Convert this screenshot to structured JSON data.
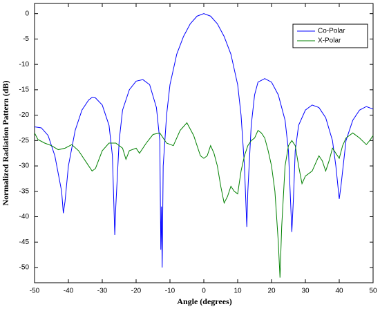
{
  "chart_data": {
    "type": "line",
    "x_label": "Angle (degrees)",
    "y_label": "Normalized Radiation Pattern (dB)",
    "xlim": [
      -50,
      50
    ],
    "ylim": [
      -53,
      2
    ],
    "xticks": [
      -50,
      -40,
      -30,
      -20,
      -10,
      0,
      10,
      20,
      30,
      40,
      50
    ],
    "yticks": [
      0,
      -5,
      -10,
      -15,
      -20,
      -25,
      -30,
      -35,
      -40,
      -45,
      -50
    ],
    "legend": "upper right",
    "series": [
      {
        "name": "Co-Polar",
        "color": "#0000ff",
        "x": [
          -50,
          -48,
          -46,
          -44,
          -42,
          -41.5,
          -41,
          -40,
          -38,
          -36,
          -34,
          -33,
          -32,
          -30,
          -28,
          -27,
          -26.3,
          -26,
          -25,
          -24,
          -22,
          -20,
          -18,
          -16,
          -14,
          -13,
          -12.7,
          -12.5,
          -12.3,
          -12,
          -11,
          -10,
          -8,
          -6,
          -4,
          -2,
          0,
          2,
          4,
          6,
          8,
          10,
          11,
          12,
          12.7,
          13,
          14,
          15,
          16,
          18,
          20,
          22,
          24,
          25,
          26,
          26.5,
          27,
          28,
          30,
          32,
          34,
          36,
          38,
          39,
          40,
          40.5,
          42,
          44,
          46,
          48,
          50
        ],
        "values": [
          -22.3,
          -22.5,
          -24,
          -28,
          -35,
          -39.3,
          -37,
          -30,
          -23,
          -19,
          -17,
          -16.5,
          -16.6,
          -18,
          -22,
          -28,
          -43.6,
          -38,
          -25,
          -19,
          -15,
          -13.3,
          -13,
          -14,
          -18.5,
          -25,
          -46.5,
          -38,
          -50,
          -30,
          -20,
          -14,
          -8,
          -4.5,
          -2,
          -0.5,
          0,
          -0.5,
          -2,
          -4.5,
          -8,
          -14,
          -20,
          -30,
          -42,
          -35,
          -22,
          -16,
          -13.5,
          -12.8,
          -13.5,
          -16,
          -21,
          -27,
          -43,
          -36,
          -27,
          -22,
          -19,
          -18,
          -18.5,
          -20.5,
          -25,
          -30,
          -36.5,
          -34,
          -25,
          -21,
          -19,
          -18.3,
          -18.8
        ]
      },
      {
        "name": "X-Polar",
        "color": "#008000",
        "x": [
          -50,
          -49,
          -47,
          -45,
          -43,
          -41,
          -39,
          -37,
          -35,
          -33,
          -32,
          -30,
          -28,
          -26,
          -24,
          -23,
          -22,
          -20,
          -19,
          -17,
          -15,
          -13,
          -11,
          -9,
          -7,
          -5,
          -3,
          -1,
          0,
          1,
          2,
          3,
          4,
          5,
          6,
          7,
          8,
          9,
          10,
          11,
          12,
          13,
          14,
          15,
          16,
          17,
          18,
          19,
          20,
          21,
          22,
          22.5,
          23,
          24,
          25,
          26,
          27,
          28,
          29,
          30,
          32,
          34,
          35,
          36,
          37,
          38,
          39,
          40,
          41,
          42,
          44,
          46,
          48,
          49,
          50
        ],
        "values": [
          -23.5,
          -24.8,
          -25.5,
          -26,
          -26.8,
          -26.5,
          -25.8,
          -27,
          -29,
          -31,
          -30.5,
          -27,
          -25.5,
          -25.5,
          -26.5,
          -28.7,
          -27,
          -26.5,
          -27.5,
          -25.5,
          -23.8,
          -23.5,
          -25.5,
          -26,
          -23,
          -21.5,
          -24,
          -28,
          -28.5,
          -28,
          -26,
          -27.5,
          -30,
          -34,
          -37.3,
          -36,
          -34,
          -35,
          -35.5,
          -31,
          -28,
          -26,
          -25,
          -24.5,
          -23,
          -23.5,
          -24.5,
          -27,
          -30,
          -35,
          -45,
          -52,
          -42,
          -30,
          -26,
          -25,
          -26,
          -30,
          -33.5,
          -32,
          -31,
          -28,
          -29,
          -31,
          -29,
          -26.5,
          -27.5,
          -28.5,
          -26,
          -24.5,
          -23.5,
          -24.5,
          -25.8,
          -25,
          -24
        ]
      }
    ]
  }
}
